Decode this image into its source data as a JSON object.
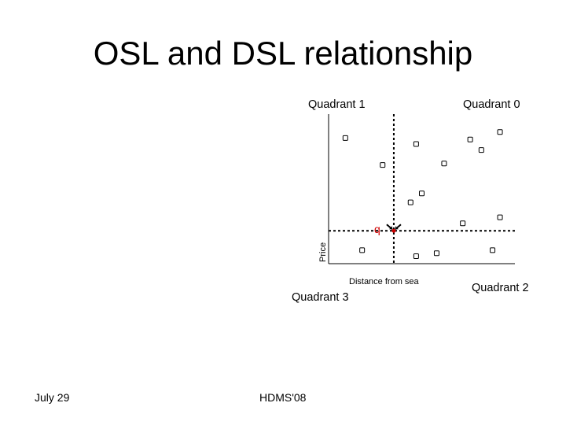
{
  "slide": {
    "title": "OSL and DSL relationship",
    "footer": {
      "date": "July 29",
      "conference": "HDMS'08"
    }
  },
  "diagram": {
    "quadrants": {
      "q1": "Quadrant 1",
      "q0": "Quadrant 0",
      "q3": "Quadrant 3",
      "q2": "Quadrant 2"
    },
    "query_label": "q",
    "xlabel": "Distance from sea",
    "ylabel": "Price"
  },
  "chart_data": {
    "type": "scatter",
    "xlabel": "Distance from sea",
    "ylabel": "Price",
    "xlim": [
      0,
      100
    ],
    "ylim": [
      0,
      100
    ],
    "query": {
      "label": "q",
      "x": 35,
      "y": 22
    },
    "points": [
      {
        "x": 9,
        "y": 84
      },
      {
        "x": 29,
        "y": 66
      },
      {
        "x": 47,
        "y": 80
      },
      {
        "x": 50,
        "y": 47
      },
      {
        "x": 44,
        "y": 41
      },
      {
        "x": 62,
        "y": 67
      },
      {
        "x": 76,
        "y": 83
      },
      {
        "x": 82,
        "y": 76
      },
      {
        "x": 92,
        "y": 88
      },
      {
        "x": 72,
        "y": 27
      },
      {
        "x": 92,
        "y": 31
      },
      {
        "x": 58,
        "y": 7
      },
      {
        "x": 18,
        "y": 9
      },
      {
        "x": 47,
        "y": 5
      },
      {
        "x": 88,
        "y": 9
      }
    ],
    "colors": {
      "axis": "#000000",
      "points": "#000000",
      "query_marker": "#d00000",
      "divider": "#000000"
    }
  }
}
